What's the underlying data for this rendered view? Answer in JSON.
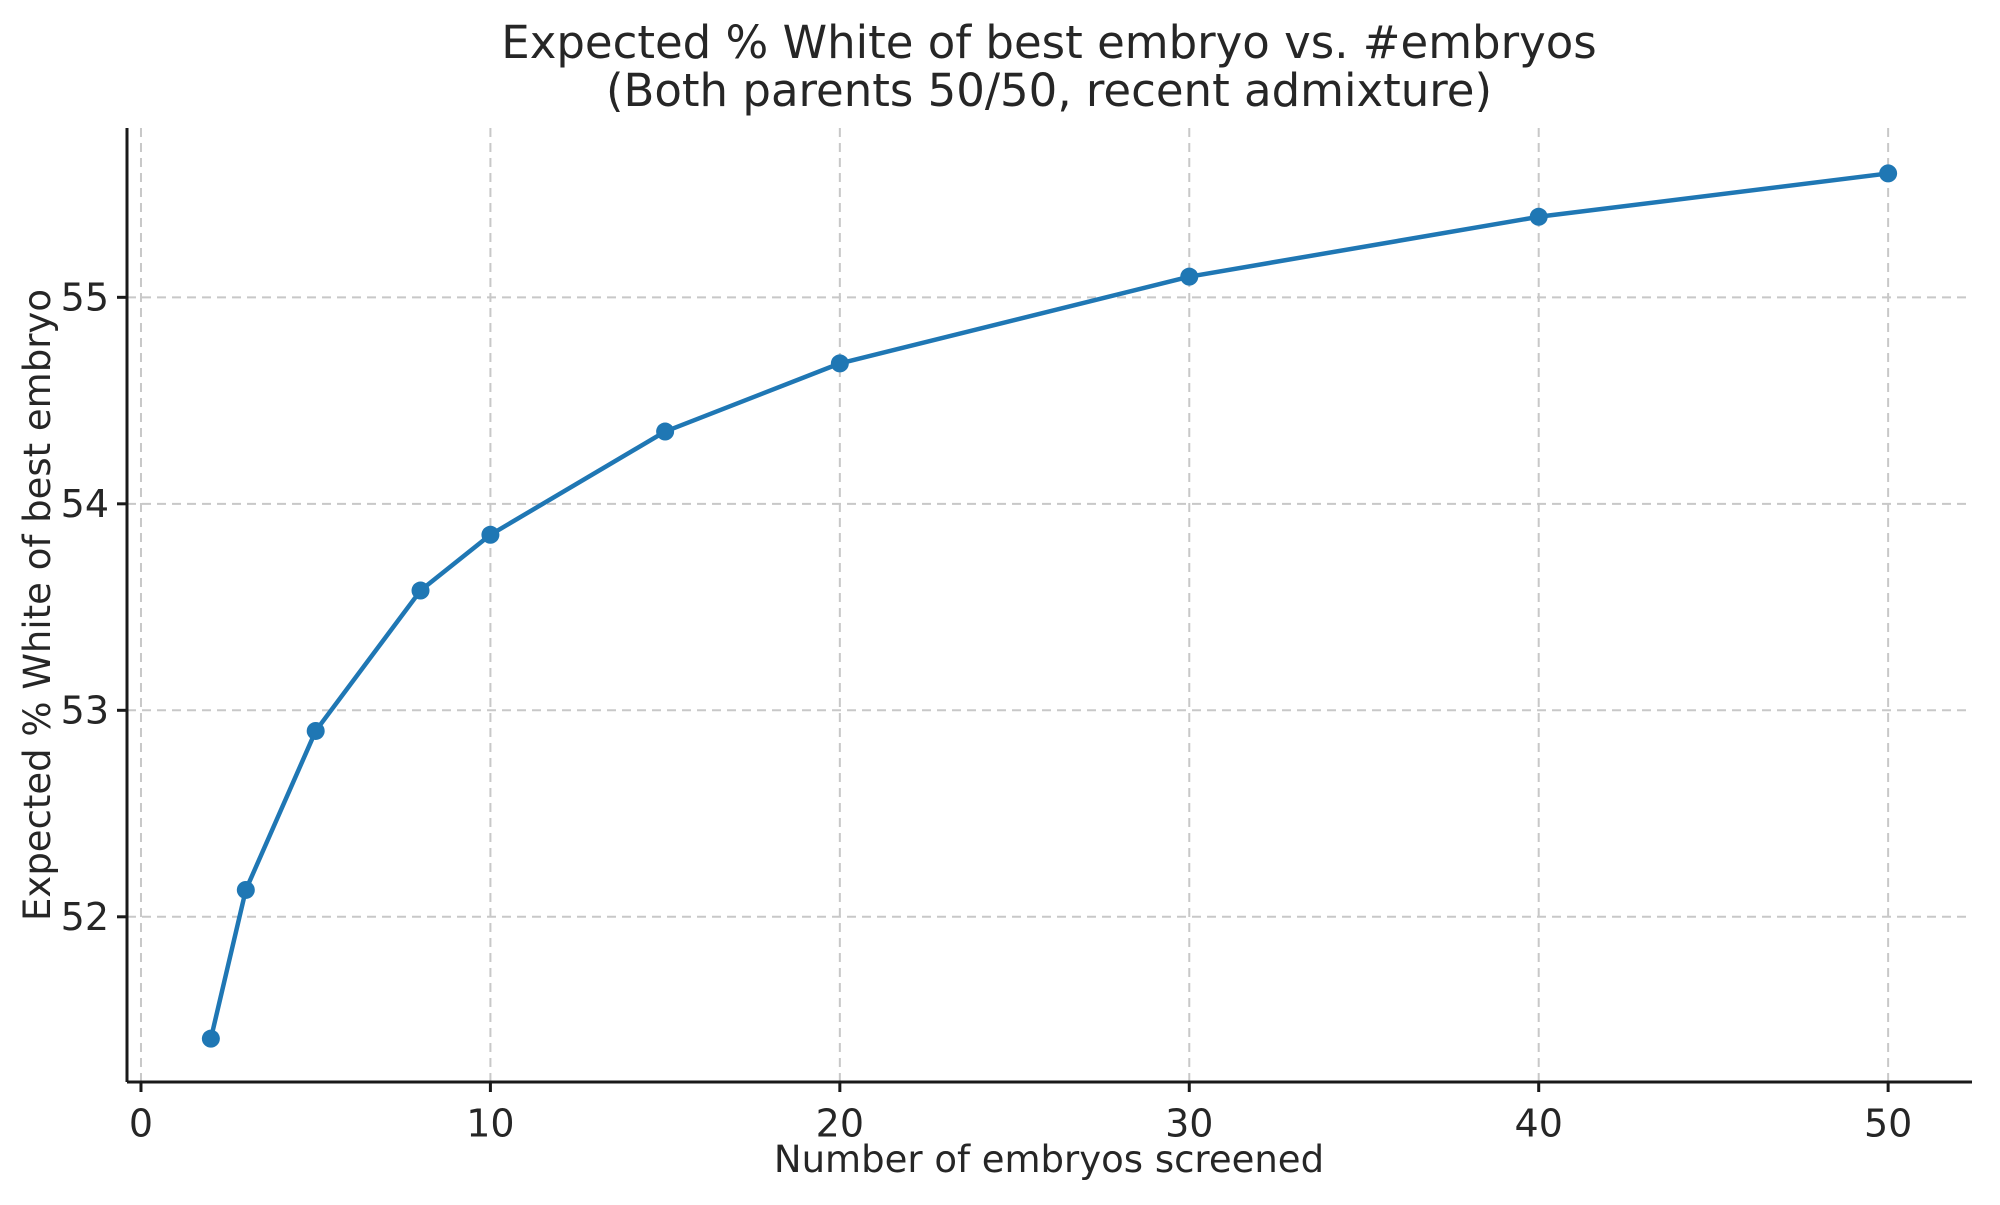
{
  "figure": {
    "background": "#ffffff"
  },
  "chart_data": {
    "type": "line",
    "title": "Expected % White of best embryo vs. #embryos",
    "subtitle": "(Both parents 50/50, recent admixture)",
    "xlabel": "Number of embryos screened",
    "ylabel": "Expected % White of best embryo",
    "x": [
      2,
      3,
      5,
      8,
      10,
      15,
      20,
      30,
      40,
      50
    ],
    "y": [
      51.41,
      52.13,
      52.9,
      53.58,
      53.85,
      54.35,
      54.68,
      55.1,
      55.39,
      55.6
    ],
    "xticks": [
      0,
      10,
      20,
      30,
      40,
      50
    ],
    "yticks": [
      52,
      53,
      54,
      55
    ],
    "xlim": [
      -0.4,
      52.4
    ],
    "ylim": [
      51.2,
      55.82
    ],
    "grid": true,
    "grid_style": "dashed",
    "legend": "none",
    "line_color": "#1f77b4",
    "marker": "circle",
    "grid_color": "#c8c8c8",
    "spine_color": "#1a1a1a",
    "text_color": "#262626",
    "background": "#ffffff"
  }
}
